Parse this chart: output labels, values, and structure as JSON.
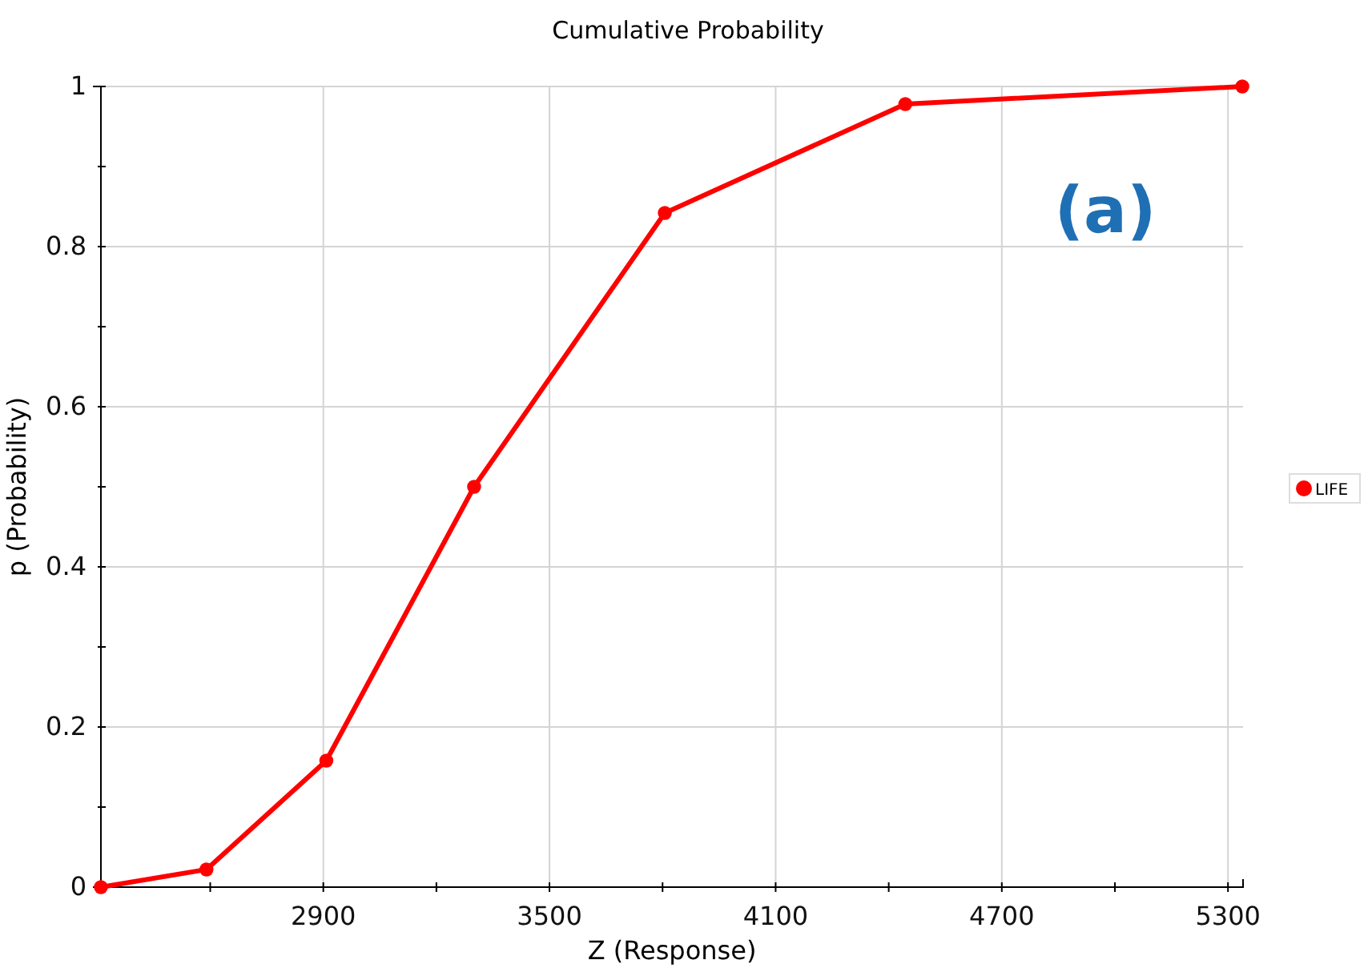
{
  "chart_data": {
    "type": "line",
    "title": "Cumulative Probability",
    "xlabel": "Z (Response)",
    "ylabel": "p (Probability)",
    "x": [
      2310,
      2590,
      2908,
      3300,
      3806,
      4444,
      5338
    ],
    "series": [
      {
        "name": "LIFE",
        "color": "#ff0000",
        "values": [
          0,
          0.022,
          0.158,
          0.5,
          0.842,
          0.978,
          1
        ]
      }
    ],
    "xlim": [
      2310,
      5340
    ],
    "xticks": [
      {
        "value": 2600,
        "label": null
      },
      2900,
      {
        "value": 3200,
        "label": null
      },
      3500,
      {
        "value": 3800,
        "label": null
      },
      4100,
      {
        "value": 4400,
        "label": null
      },
      4700,
      {
        "value": 5000,
        "label": null
      },
      5300
    ],
    "ylim": [
      0,
      1
    ],
    "yticks": [
      0,
      {
        "value": 0.1,
        "label": null
      },
      0.2,
      {
        "value": 0.3,
        "label": null
      },
      0.4,
      {
        "value": 0.5,
        "label": null
      },
      0.6,
      {
        "value": 0.7,
        "label": null
      },
      0.8,
      {
        "value": 0.9,
        "label": null
      },
      1
    ],
    "grid": true,
    "legend": "right",
    "marker": "circle",
    "line_style": "solid",
    "annotations": [
      "(a)"
    ]
  }
}
